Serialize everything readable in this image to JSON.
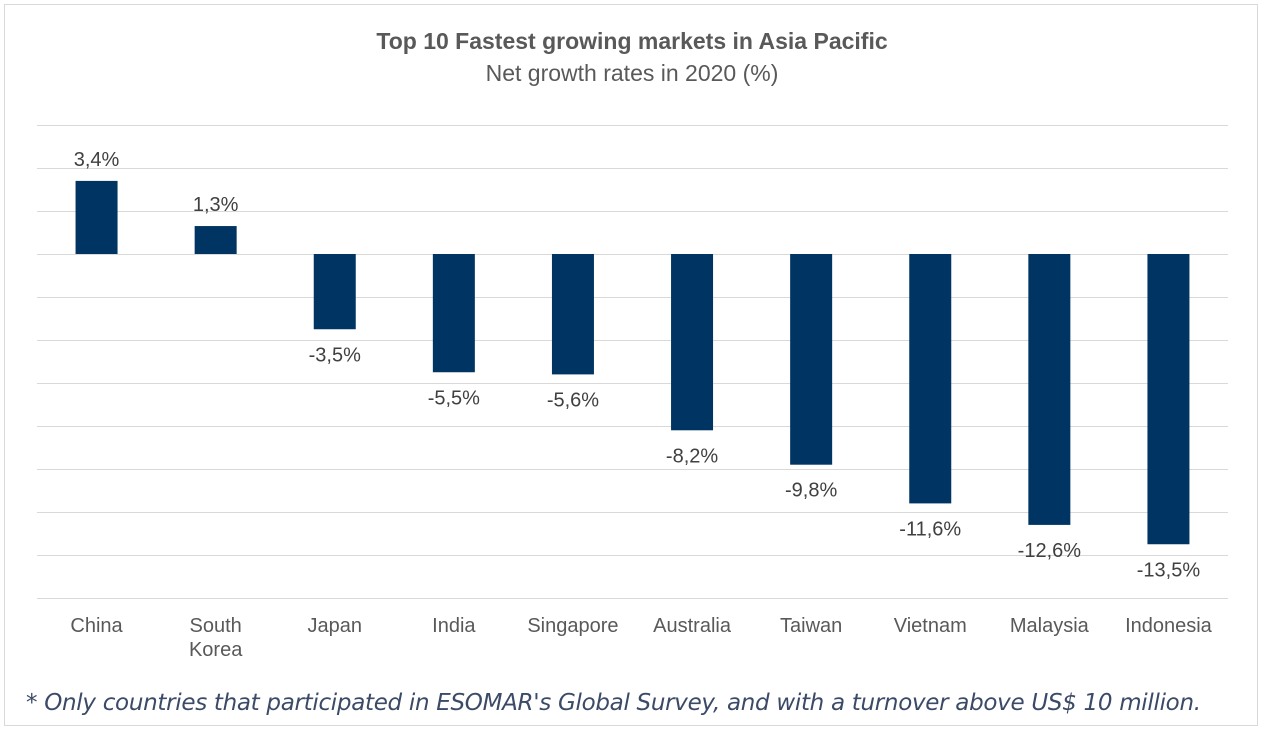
{
  "chart_data": {
    "type": "bar",
    "title": "Top 10 Fastest growing markets in Asia Pacific",
    "subtitle": "Net growth rates in 2020 (%)",
    "categories": [
      "China",
      "South Korea",
      "Japan",
      "India",
      "Singapore",
      "Australia",
      "Taiwan",
      "Vietnam",
      "Malaysia",
      "Indonesia"
    ],
    "values": [
      3.4,
      1.3,
      -3.5,
      -5.5,
      -5.6,
      -8.2,
      -9.8,
      -11.6,
      -12.6,
      -13.5
    ],
    "data_labels": [
      "3,4%",
      "1,3%",
      "-3,5%",
      "-5,5%",
      "-5,6%",
      "-8,2%",
      "-9,8%",
      "-11,6%",
      "-12,6%",
      "-13,5%"
    ],
    "ylim": [
      -16,
      6
    ],
    "grid_step": 2,
    "grid": true,
    "bar_color": "#003462",
    "xlabel": "",
    "ylabel": ""
  },
  "footnote": "* Only countries that participated in ESOMAR's Global Survey, and with a turnover above US$ 10 million."
}
